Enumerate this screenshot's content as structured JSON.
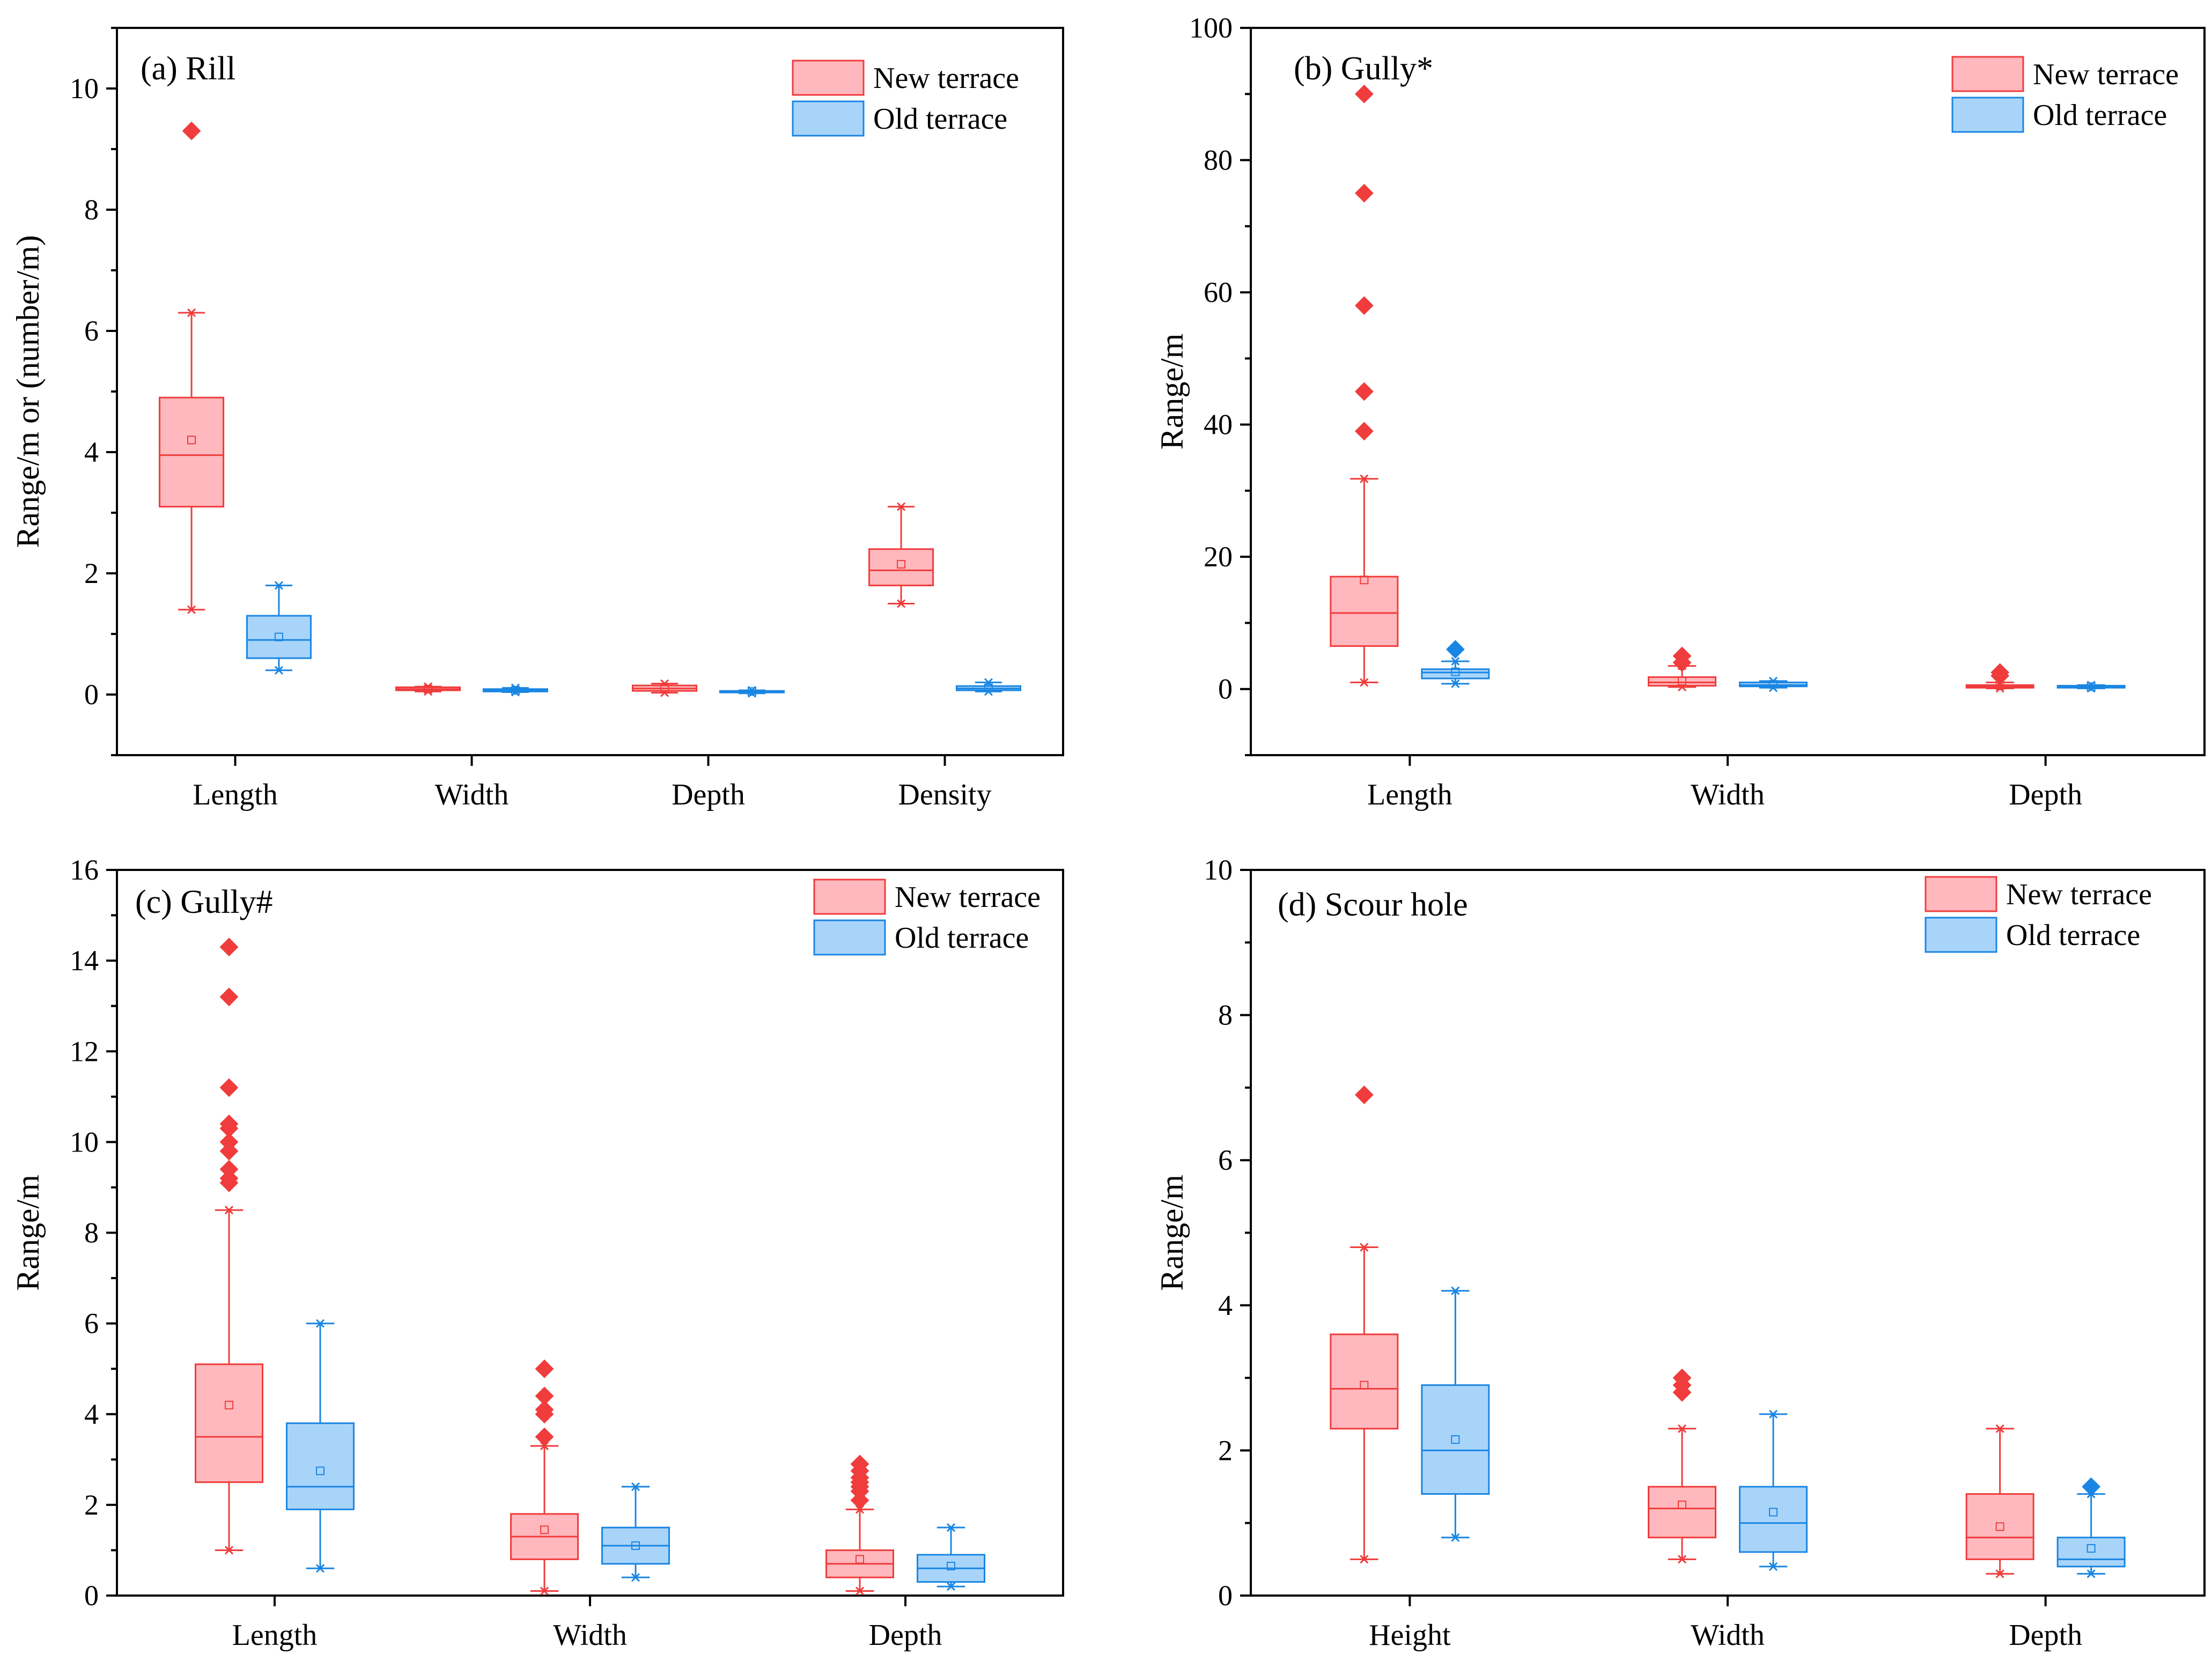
{
  "colors": {
    "new_fill": "#ffb8bd",
    "new_stroke": "#f03c3c",
    "old_fill": "#a9d4fa",
    "old_stroke": "#1a86e3",
    "axis": "#000000"
  },
  "legend": {
    "new": "New terrace",
    "old": "Old terrace"
  },
  "chart_data": [
    {
      "type": "box",
      "title": "(a) Rill",
      "ylabel": "Range/m or (number/m)",
      "ylim": [
        -1,
        11
      ],
      "yticks": [
        0,
        2,
        4,
        6,
        8,
        10
      ],
      "categories": [
        "Length",
        "Width",
        "Depth",
        "Density"
      ],
      "series": [
        {
          "name": "New terrace",
          "boxes": [
            {
              "min": 1.4,
              "q1": 3.1,
              "median": 3.95,
              "q3": 4.9,
              "max": 6.3,
              "mean": 4.2,
              "outliers": [
                9.3
              ]
            },
            {
              "min": 0.05,
              "q1": 0.07,
              "median": 0.09,
              "q3": 0.12,
              "max": 0.13,
              "mean": 0.09,
              "outliers": []
            },
            {
              "min": 0.03,
              "q1": 0.06,
              "median": 0.1,
              "q3": 0.15,
              "max": 0.18,
              "mean": 0.1,
              "outliers": []
            },
            {
              "min": 1.5,
              "q1": 1.8,
              "median": 2.05,
              "q3": 2.4,
              "max": 3.1,
              "mean": 2.15,
              "outliers": []
            }
          ]
        },
        {
          "name": "Old terrace",
          "boxes": [
            {
              "min": 0.4,
              "q1": 0.6,
              "median": 0.9,
              "q3": 1.3,
              "max": 1.8,
              "mean": 0.95,
              "outliers": []
            },
            {
              "min": 0.04,
              "q1": 0.05,
              "median": 0.07,
              "q3": 0.09,
              "max": 0.11,
              "mean": 0.07,
              "outliers": []
            },
            {
              "min": 0.02,
              "q1": 0.04,
              "median": 0.05,
              "q3": 0.06,
              "max": 0.07,
              "mean": 0.05,
              "outliers": []
            },
            {
              "min": 0.05,
              "q1": 0.07,
              "median": 0.1,
              "q3": 0.14,
              "max": 0.2,
              "mean": 0.11,
              "outliers": []
            }
          ]
        }
      ]
    },
    {
      "type": "box",
      "title": "(b) Gully*",
      "ylabel": "Range/m",
      "ylim": [
        -10,
        100
      ],
      "yticks": [
        0,
        20,
        40,
        60,
        80,
        100
      ],
      "categories": [
        "Length",
        "Width",
        "Depth"
      ],
      "series": [
        {
          "name": "New terrace",
          "boxes": [
            {
              "min": 1.0,
              "q1": 6.5,
              "median": 11.5,
              "q3": 17.0,
              "max": 31.8,
              "mean": 16.5,
              "outliers": [
                39,
                45,
                58,
                75,
                90
              ]
            },
            {
              "min": 0.3,
              "q1": 0.5,
              "median": 1.0,
              "q3": 1.8,
              "max": 3.5,
              "mean": 1.2,
              "outliers": [
                4.0,
                5.0
              ]
            },
            {
              "min": 0.1,
              "q1": 0.2,
              "median": 0.4,
              "q3": 0.6,
              "max": 1.0,
              "mean": 0.5,
              "outliers": [
                2.0,
                2.5
              ]
            }
          ]
        },
        {
          "name": "Old terrace",
          "boxes": [
            {
              "min": 0.8,
              "q1": 1.6,
              "median": 2.5,
              "q3": 3.0,
              "max": 4.2,
              "mean": 2.6,
              "outliers": [
                6.0
              ]
            },
            {
              "min": 0.2,
              "q1": 0.4,
              "median": 0.6,
              "q3": 1.0,
              "max": 1.2,
              "mean": 0.7,
              "outliers": []
            },
            {
              "min": 0.1,
              "q1": 0.2,
              "median": 0.3,
              "q3": 0.5,
              "max": 0.6,
              "mean": 0.35,
              "outliers": []
            }
          ]
        }
      ]
    },
    {
      "type": "box",
      "title": "(c) Gully#",
      "ylabel": "Range/m",
      "ylim": [
        0,
        16
      ],
      "yticks": [
        0,
        2,
        4,
        6,
        8,
        10,
        12,
        14,
        16
      ],
      "categories": [
        "Length",
        "Width",
        "Depth"
      ],
      "series": [
        {
          "name": "New terrace",
          "boxes": [
            {
              "min": 1.0,
              "q1": 2.5,
              "median": 3.5,
              "q3": 5.1,
              "max": 8.5,
              "mean": 4.2,
              "outliers": [
                9.1,
                9.2,
                9.4,
                9.8,
                10.0,
                10.3,
                10.4,
                11.2,
                13.2,
                14.3
              ]
            },
            {
              "min": 0.1,
              "q1": 0.8,
              "median": 1.3,
              "q3": 1.8,
              "max": 3.3,
              "mean": 1.45,
              "outliers": [
                3.5,
                4.0,
                4.1,
                4.4,
                5.0
              ]
            },
            {
              "min": 0.1,
              "q1": 0.4,
              "median": 0.7,
              "q3": 1.0,
              "max": 1.9,
              "mean": 0.8,
              "outliers": [
                2.1,
                2.3,
                2.4,
                2.5,
                2.6,
                2.75,
                2.9
              ]
            }
          ]
        },
        {
          "name": "Old terrace",
          "boxes": [
            {
              "min": 0.6,
              "q1": 1.9,
              "median": 2.4,
              "q3": 3.8,
              "max": 6.0,
              "mean": 2.75,
              "outliers": []
            },
            {
              "min": 0.4,
              "q1": 0.7,
              "median": 1.1,
              "q3": 1.5,
              "max": 2.4,
              "mean": 1.1,
              "outliers": []
            },
            {
              "min": 0.2,
              "q1": 0.3,
              "median": 0.6,
              "q3": 0.9,
              "max": 1.5,
              "mean": 0.65,
              "outliers": []
            }
          ]
        }
      ]
    },
    {
      "type": "box",
      "title": "(d) Scour hole",
      "ylabel": "Range/m",
      "ylim": [
        0,
        10
      ],
      "yticks": [
        0,
        2,
        4,
        6,
        8,
        10
      ],
      "categories": [
        "Height",
        "Width",
        "Depth"
      ],
      "series": [
        {
          "name": "New terrace",
          "boxes": [
            {
              "min": 0.5,
              "q1": 2.3,
              "median": 2.85,
              "q3": 3.6,
              "max": 4.8,
              "mean": 2.9,
              "outliers": [
                6.9
              ]
            },
            {
              "min": 0.5,
              "q1": 0.8,
              "median": 1.2,
              "q3": 1.5,
              "max": 2.3,
              "mean": 1.25,
              "outliers": [
                2.8,
                2.9,
                3.0
              ]
            },
            {
              "min": 0.3,
              "q1": 0.5,
              "median": 0.8,
              "q3": 1.4,
              "max": 2.3,
              "mean": 0.95,
              "outliers": []
            }
          ]
        },
        {
          "name": "Old terrace",
          "boxes": [
            {
              "min": 0.8,
              "q1": 1.4,
              "median": 2.0,
              "q3": 2.9,
              "max": 4.2,
              "mean": 2.15,
              "outliers": []
            },
            {
              "min": 0.4,
              "q1": 0.6,
              "median": 1.0,
              "q3": 1.5,
              "max": 2.5,
              "mean": 1.15,
              "outliers": []
            },
            {
              "min": 0.3,
              "q1": 0.4,
              "median": 0.5,
              "q3": 0.8,
              "max": 1.4,
              "mean": 0.65,
              "outliers": [
                1.5
              ]
            }
          ]
        }
      ]
    }
  ]
}
